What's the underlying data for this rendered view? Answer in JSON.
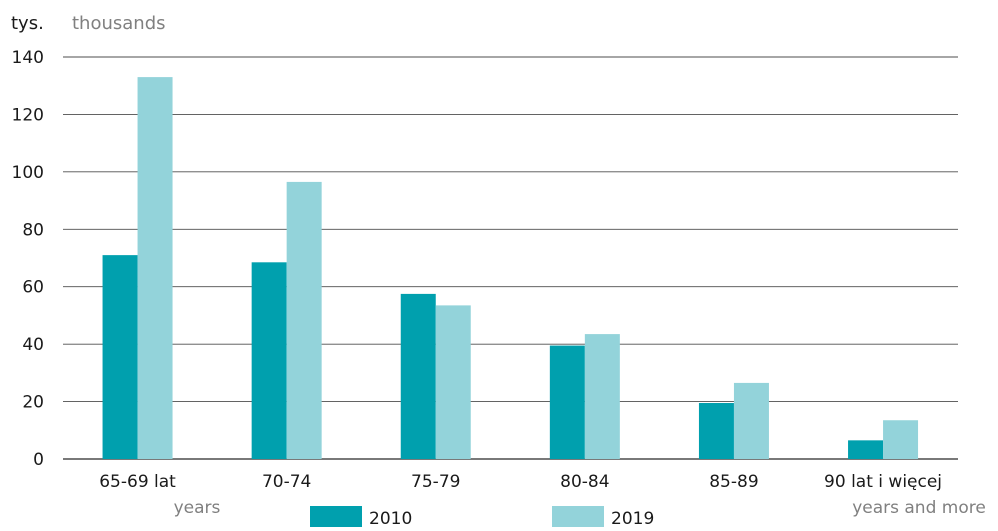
{
  "chart_data": {
    "type": "bar",
    "ylabel": "tys.",
    "ylabel_en": "thousands",
    "categories": [
      "65-69 lat",
      "70-74",
      "75-79",
      "80-84",
      "85-89",
      "90 lat i więcej"
    ],
    "category_sublabels": {
      "65-69 lat": "years",
      "90 lat i więcej": "years and more"
    },
    "series": [
      {
        "name": "2010",
        "values": [
          71,
          68.5,
          57.5,
          39.5,
          19.5,
          6.5
        ],
        "color": "#00A0AE"
      },
      {
        "name": "2019",
        "values": [
          133,
          96.5,
          53.5,
          43.5,
          26.5,
          13.5
        ],
        "color": "#93D3DA"
      }
    ],
    "ylim": [
      0,
      140
    ],
    "yticks": [
      0,
      20,
      40,
      60,
      80,
      100,
      120,
      140
    ],
    "grid": true,
    "legend_position": "bottom",
    "colors": {
      "axis_text": "#1a1a1a",
      "secondary_text": "#808080",
      "gridline": "#4d4d4d"
    }
  }
}
